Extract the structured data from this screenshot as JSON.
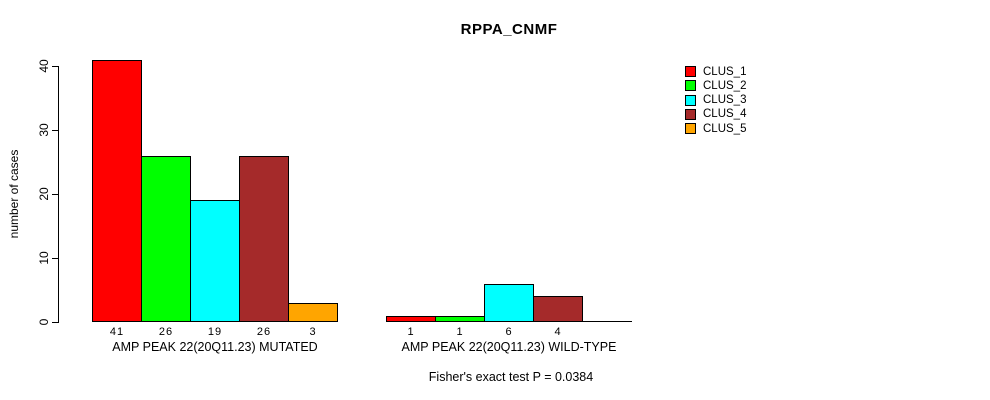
{
  "title": "RPPA_CNMF",
  "chart_data": {
    "type": "bar",
    "title": "RPPA_CNMF",
    "ylabel": "number of cases",
    "xlabel": "",
    "ylim": [
      0,
      41
    ],
    "yticks": [
      0,
      10,
      20,
      30,
      40
    ],
    "grid": false,
    "legend_position": "right-outside",
    "series_names": [
      "CLUS_1",
      "CLUS_2",
      "CLUS_3",
      "CLUS_4",
      "CLUS_5"
    ],
    "series_colors": [
      "#FF0000",
      "#00FF00",
      "#00FFFF",
      "#A52A2A",
      "#FFA500"
    ],
    "categories": [
      "AMP PEAK 22(20Q11.23) MUTATED",
      "AMP PEAK 22(20Q11.23) WILD-TYPE"
    ],
    "groups": [
      {
        "label": "AMP PEAK 22(20Q11.23) MUTATED",
        "values": [
          41,
          26,
          19,
          26,
          3
        ]
      },
      {
        "label": "AMP PEAK 22(20Q11.23) WILD-TYPE",
        "values": [
          1,
          1,
          6,
          4,
          0
        ]
      }
    ],
    "bar_value_labels": [
      [
        "41",
        "26",
        "19",
        "26",
        "3"
      ],
      [
        "1",
        "1",
        "6",
        "4",
        ""
      ]
    ],
    "annotation": "Fisher's exact test P = 0.0384"
  },
  "legend": {
    "items": [
      {
        "label": "CLUS_1",
        "color": "#FF0000"
      },
      {
        "label": "CLUS_2",
        "color": "#00FF00"
      },
      {
        "label": "CLUS_3",
        "color": "#00FFFF"
      },
      {
        "label": "CLUS_4",
        "color": "#A52A2A"
      },
      {
        "label": "CLUS_5",
        "color": "#FFA500"
      }
    ]
  }
}
